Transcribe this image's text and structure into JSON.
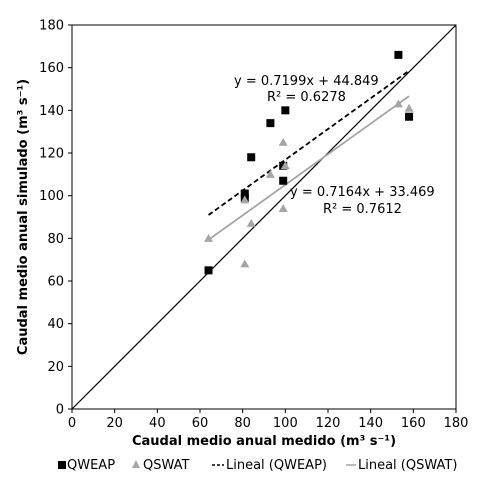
{
  "chart_data": {
    "type": "scatter",
    "title": "",
    "xlabel": "Caudal medio anual medido (m³ s⁻¹)",
    "ylabel": "Caudal medio anual simulado (m³ s⁻¹)",
    "xlim": [
      0,
      180
    ],
    "ylim": [
      0,
      180
    ],
    "xticks": [
      "0",
      "20",
      "40",
      "60",
      "80",
      "100",
      "120",
      "140",
      "160",
      "180"
    ],
    "yticks": [
      "0",
      "20",
      "40",
      "60",
      "80",
      "100",
      "120",
      "140",
      "160",
      "180"
    ],
    "grid": false,
    "legend_position": "bottom",
    "series": [
      {
        "name": "QWEAP",
        "marker": "square",
        "color": "#000000",
        "points": [
          [
            64,
            65
          ],
          [
            81,
            101
          ],
          [
            81,
            99
          ],
          [
            84,
            118
          ],
          [
            93,
            134
          ],
          [
            99,
            107
          ],
          [
            99,
            114
          ],
          [
            100,
            140
          ],
          [
            153,
            166
          ],
          [
            158,
            137
          ]
        ]
      },
      {
        "name": "QSWAT",
        "marker": "triangle",
        "color": "#a6a6a6",
        "points": [
          [
            64,
            80
          ],
          [
            81,
            68
          ],
          [
            81,
            98
          ],
          [
            84,
            87
          ],
          [
            93,
            110
          ],
          [
            99,
            94
          ],
          [
            99,
            125
          ],
          [
            100,
            114
          ],
          [
            153,
            143
          ],
          [
            158,
            141
          ]
        ]
      }
    ],
    "trendlines": [
      {
        "name": "Lineal (QWEAP)",
        "style": "dashed",
        "color": "#000000",
        "slope": 0.7199,
        "intercept": 44.849,
        "x_range": [
          64,
          158
        ],
        "equation": "y = 0.7199x + 44.849",
        "r2": "R² = 0.6278"
      },
      {
        "name": "Lineal (QSWAT)",
        "style": "solid",
        "color": "#a6a6a6",
        "slope": 0.7164,
        "intercept": 33.469,
        "x_range": [
          64,
          158
        ],
        "equation": "y = 0.7164x + 33.469",
        "r2": "R² = 0.7612"
      }
    ],
    "reference_line": {
      "type": "1:1",
      "color": "#000000"
    },
    "legend": [
      {
        "label": "QWEAP",
        "kind": "square"
      },
      {
        "label": "QSWAT",
        "kind": "triangle"
      },
      {
        "label": "Lineal (QWEAP)",
        "kind": "dashed"
      },
      {
        "label": "Lineal (QSWAT)",
        "kind": "solid-gray"
      }
    ]
  }
}
